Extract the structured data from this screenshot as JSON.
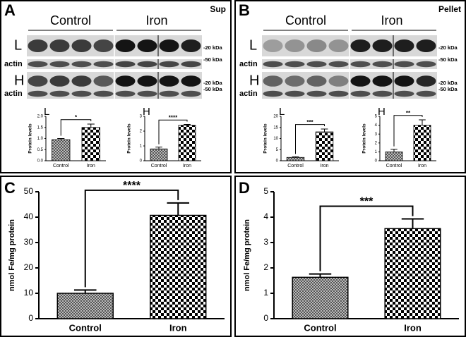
{
  "panels": [
    "A",
    "B",
    "C",
    "D"
  ],
  "blots": [
    {
      "title": "Sup",
      "groups": [
        "Control",
        "Iron"
      ],
      "rows": [
        {
          "label": "L",
          "marker": "-20 kDa"
        },
        {
          "label": "actin",
          "marker": "-50 kDa"
        },
        {
          "label": "H",
          "marker": "-20 kDa"
        },
        {
          "label": "actin",
          "marker": "-50 kDa"
        }
      ]
    },
    {
      "title": "Pellet",
      "groups": [
        "Control",
        "Iron"
      ],
      "rows": [
        {
          "label": "L",
          "marker": "-20 kDa"
        },
        {
          "label": "actin",
          "marker": "-50 kDa"
        },
        {
          "label": "H",
          "marker": "-20 kDa"
        },
        {
          "label": "actin",
          "marker": "-50 kDa"
        }
      ]
    }
  ],
  "chart_data": [
    {
      "type": "bar",
      "title": "L",
      "y_label": "Protein levels",
      "categories": [
        "Control",
        "Iron"
      ],
      "values": [
        0.95,
        1.5
      ],
      "errors": [
        0.05,
        0.15
      ],
      "annotation": "*",
      "ylim": [
        0,
        2
      ],
      "yticks": [
        {
          "value": 0,
          "label": "0.0"
        },
        {
          "value": 0.5,
          "label": "0.5"
        },
        {
          "value": 1,
          "label": "1.0"
        },
        {
          "value": 1.5,
          "label": "1.5"
        },
        {
          "value": 2,
          "label": "2.0"
        }
      ]
    },
    {
      "type": "bar",
      "title": "H",
      "y_label": "Protein levels",
      "categories": [
        "Control",
        "Iron"
      ],
      "values": [
        0.8,
        2.4
      ],
      "errors": [
        0.12,
        0.05
      ],
      "annotation": "****",
      "ylim": [
        0,
        3
      ],
      "yticks": [
        0,
        1,
        2,
        3
      ]
    },
    {
      "type": "bar",
      "title": "L",
      "y_label": "Protein levels",
      "categories": [
        "Control",
        "Iron"
      ],
      "values": [
        1.5,
        13
      ],
      "errors": [
        0.3,
        1.3
      ],
      "annotation": "***",
      "ylim": [
        0,
        20
      ],
      "yticks": [
        0,
        5,
        10,
        15,
        20
      ]
    },
    {
      "type": "bar",
      "title": "H",
      "y_label": "Protein levels",
      "categories": [
        "Control",
        "Iron"
      ],
      "values": [
        1,
        4
      ],
      "errors": [
        0.3,
        0.6
      ],
      "annotation": "**",
      "ylim": [
        0,
        5
      ],
      "yticks": [
        0,
        1,
        2,
        3,
        4,
        5
      ]
    },
    {
      "type": "bar",
      "y_label": "nmol Fe/mg protein",
      "categories": [
        "Control",
        "Iron"
      ],
      "values": [
        10,
        40.7
      ],
      "errors": [
        1.3,
        4.9
      ],
      "annotation": "****",
      "ylim": [
        0,
        50
      ],
      "yticks": [
        0,
        10,
        20,
        30,
        40,
        50
      ]
    },
    {
      "type": "bar",
      "y_label": "nmol Fe/mg protein",
      "categories": [
        "Control",
        "Iron"
      ],
      "values": [
        1.63,
        3.55
      ],
      "errors": [
        0.13,
        0.38
      ],
      "annotation": "***",
      "ylim": [
        0,
        5
      ],
      "yticks": [
        0,
        1,
        2,
        3,
        4,
        5
      ]
    }
  ]
}
